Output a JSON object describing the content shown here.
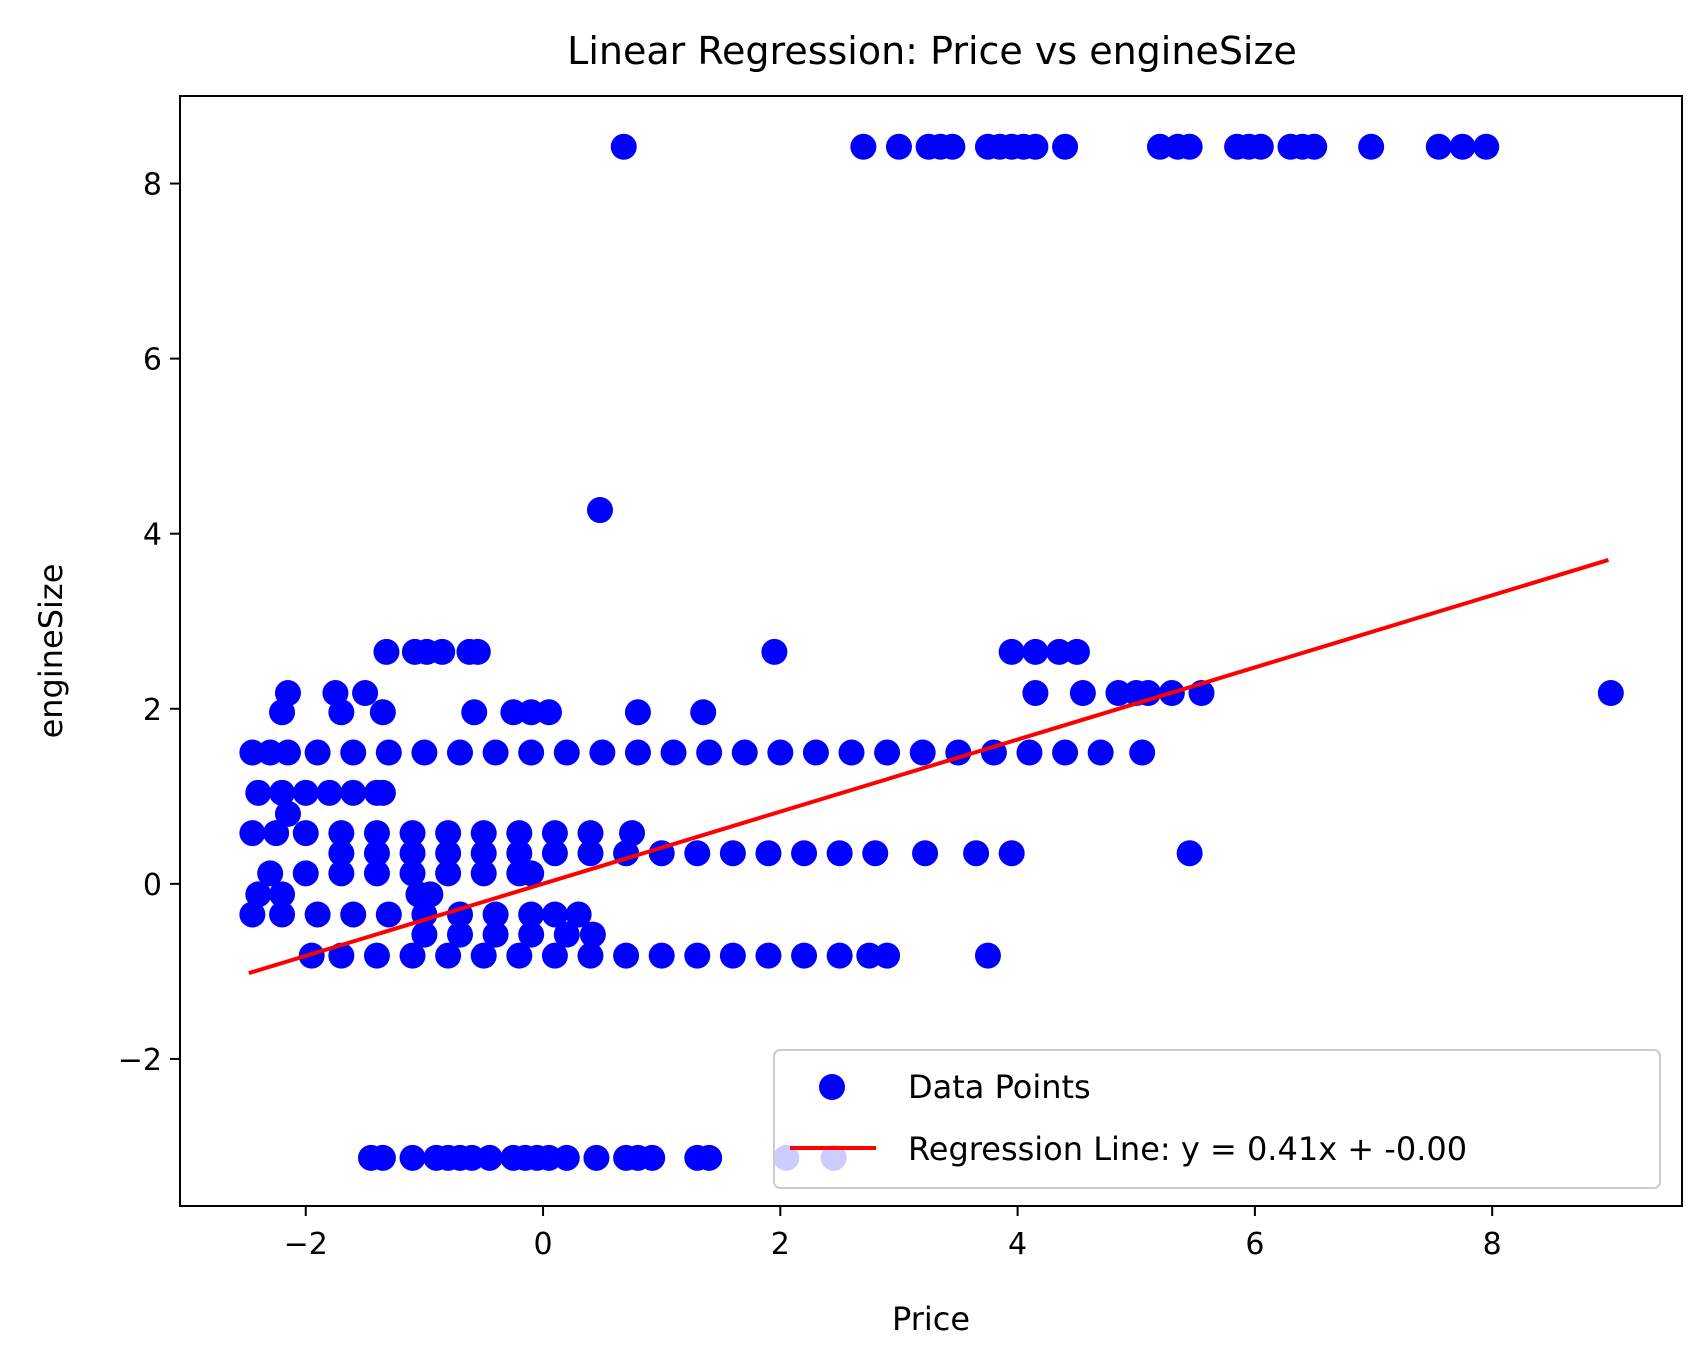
{
  "chart_data": {
    "type": "scatter",
    "title": "Linear Regression: Price vs engineSize",
    "xlabel": "Price",
    "ylabel": "engineSize",
    "xlim": [
      -3.06,
      9.6
    ],
    "ylim": [
      -3.68,
      9.0
    ],
    "xticks": [
      -2,
      0,
      2,
      4,
      6,
      8
    ],
    "yticks": [
      -2,
      0,
      2,
      4,
      6,
      8
    ],
    "xtick_labels": [
      "−2",
      "0",
      "2",
      "4",
      "6",
      "8"
    ],
    "ytick_labels": [
      "−2",
      "0",
      "2",
      "4",
      "6",
      "8"
    ],
    "grid": false,
    "legend_position": "lower right",
    "colors": {
      "points": "#0000ff",
      "line": "#ff0000"
    },
    "series": [
      {
        "name": "Data Points",
        "kind": "scatter",
        "points": [
          [
            0.68,
            8.42
          ],
          [
            2.7,
            8.42
          ],
          [
            3.0,
            8.42
          ],
          [
            3.25,
            8.42
          ],
          [
            3.35,
            8.42
          ],
          [
            3.45,
            8.42
          ],
          [
            3.75,
            8.42
          ],
          [
            3.85,
            8.42
          ],
          [
            3.95,
            8.42
          ],
          [
            4.05,
            8.42
          ],
          [
            4.15,
            8.42
          ],
          [
            4.4,
            8.42
          ],
          [
            5.2,
            8.42
          ],
          [
            5.35,
            8.42
          ],
          [
            5.45,
            8.42
          ],
          [
            5.85,
            8.42
          ],
          [
            5.95,
            8.42
          ],
          [
            6.05,
            8.42
          ],
          [
            6.3,
            8.42
          ],
          [
            6.4,
            8.42
          ],
          [
            6.5,
            8.42
          ],
          [
            6.98,
            8.42
          ],
          [
            7.55,
            8.42
          ],
          [
            7.75,
            8.42
          ],
          [
            7.95,
            8.42
          ],
          [
            0.48,
            4.27
          ],
          [
            -1.32,
            2.65
          ],
          [
            -1.08,
            2.65
          ],
          [
            -0.98,
            2.65
          ],
          [
            -0.85,
            2.65
          ],
          [
            -0.62,
            2.65
          ],
          [
            -0.55,
            2.65
          ],
          [
            1.95,
            2.65
          ],
          [
            3.95,
            2.65
          ],
          [
            4.15,
            2.65
          ],
          [
            4.35,
            2.65
          ],
          [
            4.5,
            2.65
          ],
          [
            -2.15,
            2.18
          ],
          [
            -1.75,
            2.18
          ],
          [
            -1.5,
            2.18
          ],
          [
            4.15,
            2.18
          ],
          [
            4.55,
            2.18
          ],
          [
            4.85,
            2.18
          ],
          [
            5.0,
            2.18
          ],
          [
            5.1,
            2.18
          ],
          [
            5.3,
            2.18
          ],
          [
            5.55,
            2.18
          ],
          [
            9.0,
            2.18
          ],
          [
            -2.2,
            1.96
          ],
          [
            -1.7,
            1.96
          ],
          [
            -1.35,
            1.96
          ],
          [
            -0.58,
            1.96
          ],
          [
            -0.25,
            1.96
          ],
          [
            -0.1,
            1.96
          ],
          [
            0.05,
            1.96
          ],
          [
            0.8,
            1.96
          ],
          [
            1.35,
            1.96
          ],
          [
            -2.45,
            1.5
          ],
          [
            -2.3,
            1.5
          ],
          [
            -2.15,
            1.5
          ],
          [
            -1.9,
            1.5
          ],
          [
            -1.6,
            1.5
          ],
          [
            -1.3,
            1.5
          ],
          [
            -1.0,
            1.5
          ],
          [
            -0.7,
            1.5
          ],
          [
            -0.4,
            1.5
          ],
          [
            -0.1,
            1.5
          ],
          [
            0.2,
            1.5
          ],
          [
            0.5,
            1.5
          ],
          [
            0.8,
            1.5
          ],
          [
            1.1,
            1.5
          ],
          [
            1.4,
            1.5
          ],
          [
            1.7,
            1.5
          ],
          [
            2.0,
            1.5
          ],
          [
            2.3,
            1.5
          ],
          [
            2.6,
            1.5
          ],
          [
            2.9,
            1.5
          ],
          [
            3.2,
            1.5
          ],
          [
            3.5,
            1.5
          ],
          [
            3.8,
            1.5
          ],
          [
            4.1,
            1.5
          ],
          [
            4.4,
            1.5
          ],
          [
            4.7,
            1.5
          ],
          [
            5.05,
            1.5
          ],
          [
            -2.4,
            1.04
          ],
          [
            -2.2,
            1.04
          ],
          [
            -2.0,
            1.04
          ],
          [
            -1.8,
            1.04
          ],
          [
            -1.6,
            1.04
          ],
          [
            -1.4,
            1.04
          ],
          [
            -1.35,
            1.04
          ],
          [
            -2.15,
            0.8
          ],
          [
            -2.45,
            0.58
          ],
          [
            -2.25,
            0.58
          ],
          [
            -2.0,
            0.58
          ],
          [
            -1.7,
            0.58
          ],
          [
            -1.4,
            0.58
          ],
          [
            -1.1,
            0.58
          ],
          [
            -0.8,
            0.58
          ],
          [
            -0.5,
            0.58
          ],
          [
            -0.2,
            0.58
          ],
          [
            0.1,
            0.58
          ],
          [
            0.4,
            0.58
          ],
          [
            0.75,
            0.58
          ],
          [
            -1.7,
            0.35
          ],
          [
            -1.4,
            0.35
          ],
          [
            -1.1,
            0.35
          ],
          [
            -0.8,
            0.35
          ],
          [
            -0.5,
            0.35
          ],
          [
            -0.2,
            0.35
          ],
          [
            0.1,
            0.35
          ],
          [
            0.4,
            0.35
          ],
          [
            0.7,
            0.35
          ],
          [
            1.0,
            0.35
          ],
          [
            1.3,
            0.35
          ],
          [
            1.6,
            0.35
          ],
          [
            1.9,
            0.35
          ],
          [
            2.2,
            0.35
          ],
          [
            2.5,
            0.35
          ],
          [
            2.8,
            0.35
          ],
          [
            3.22,
            0.35
          ],
          [
            3.65,
            0.35
          ],
          [
            3.95,
            0.35
          ],
          [
            5.45,
            0.35
          ],
          [
            -2.3,
            0.12
          ],
          [
            -2.0,
            0.12
          ],
          [
            -1.7,
            0.12
          ],
          [
            -1.4,
            0.12
          ],
          [
            -1.1,
            0.12
          ],
          [
            -0.8,
            0.12
          ],
          [
            -0.5,
            0.12
          ],
          [
            -0.2,
            0.12
          ],
          [
            -0.1,
            0.12
          ],
          [
            -2.4,
            -0.12
          ],
          [
            -2.2,
            -0.12
          ],
          [
            -1.05,
            -0.12
          ],
          [
            -0.95,
            -0.12
          ],
          [
            -2.45,
            -0.35
          ],
          [
            -2.2,
            -0.35
          ],
          [
            -1.9,
            -0.35
          ],
          [
            -1.6,
            -0.35
          ],
          [
            -1.3,
            -0.35
          ],
          [
            -1.0,
            -0.35
          ],
          [
            -0.7,
            -0.35
          ],
          [
            -0.4,
            -0.35
          ],
          [
            -0.1,
            -0.35
          ],
          [
            0.1,
            -0.35
          ],
          [
            0.3,
            -0.35
          ],
          [
            -1.0,
            -0.58
          ],
          [
            -0.7,
            -0.58
          ],
          [
            -0.4,
            -0.58
          ],
          [
            -0.1,
            -0.58
          ],
          [
            0.2,
            -0.58
          ],
          [
            0.42,
            -0.58
          ],
          [
            -1.95,
            -0.82
          ],
          [
            -1.7,
            -0.82
          ],
          [
            -1.4,
            -0.82
          ],
          [
            -1.1,
            -0.82
          ],
          [
            -0.8,
            -0.82
          ],
          [
            -0.5,
            -0.82
          ],
          [
            -0.2,
            -0.82
          ],
          [
            0.1,
            -0.82
          ],
          [
            0.4,
            -0.82
          ],
          [
            0.7,
            -0.82
          ],
          [
            1.0,
            -0.82
          ],
          [
            1.3,
            -0.82
          ],
          [
            1.6,
            -0.82
          ],
          [
            1.9,
            -0.82
          ],
          [
            2.2,
            -0.82
          ],
          [
            2.5,
            -0.82
          ],
          [
            2.75,
            -0.82
          ],
          [
            2.9,
            -0.82
          ],
          [
            3.75,
            -0.82
          ],
          [
            -1.45,
            -3.13
          ],
          [
            -1.35,
            -3.13
          ],
          [
            -1.1,
            -3.13
          ],
          [
            -0.9,
            -3.13
          ],
          [
            -0.8,
            -3.13
          ],
          [
            -0.7,
            -3.13
          ],
          [
            -0.6,
            -3.13
          ],
          [
            -0.45,
            -3.13
          ],
          [
            -0.25,
            -3.13
          ],
          [
            -0.15,
            -3.13
          ],
          [
            -0.05,
            -3.13
          ],
          [
            0.05,
            -3.13
          ],
          [
            0.2,
            -3.13
          ],
          [
            0.45,
            -3.13
          ],
          [
            0.7,
            -3.13
          ],
          [
            0.8,
            -3.13
          ],
          [
            0.92,
            -3.13
          ],
          [
            1.3,
            -3.13
          ],
          [
            1.4,
            -3.13
          ],
          [
            2.05,
            -3.13
          ],
          [
            2.45,
            -3.13
          ]
        ]
      },
      {
        "name": "Regression Line: y = 0.41x + -0.00",
        "kind": "line",
        "points": [
          [
            -2.48,
            -1.02
          ],
          [
            8.98,
            3.7
          ]
        ]
      }
    ]
  }
}
